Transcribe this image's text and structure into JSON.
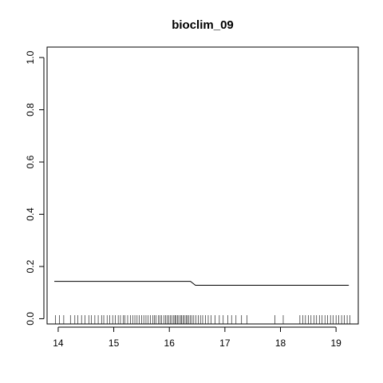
{
  "chart_data": {
    "type": "line",
    "title": "bioclim_09",
    "xlabel": "",
    "ylabel": "",
    "xlim": [
      13.8,
      19.4
    ],
    "ylim": [
      -0.02,
      1.04
    ],
    "x_ticks": [
      14,
      15,
      16,
      17,
      18,
      19
    ],
    "x_tick_labels": [
      "14",
      "15",
      "16",
      "17",
      "18",
      "19"
    ],
    "y_ticks": [
      0.0,
      0.2,
      0.4,
      0.6,
      0.8,
      1.0
    ],
    "y_tick_labels": [
      "0.0",
      "0.2",
      "0.4",
      "0.6",
      "0.8",
      "1.0"
    ],
    "grid": false,
    "series": [
      {
        "x": [
          13.93,
          16.38,
          16.47,
          19.23
        ],
        "y": [
          0.143,
          0.143,
          0.128,
          0.128
        ]
      }
    ],
    "rug": [
      13.95,
      14.02,
      14.1,
      14.22,
      14.3,
      14.35,
      14.42,
      14.48,
      14.55,
      14.6,
      14.66,
      14.72,
      14.78,
      14.82,
      14.88,
      14.93,
      14.98,
      15.03,
      15.08,
      15.12,
      15.17,
      15.2,
      15.25,
      15.3,
      15.34,
      15.38,
      15.42,
      15.46,
      15.5,
      15.54,
      15.58,
      15.62,
      15.66,
      15.7,
      15.73,
      15.76,
      15.8,
      15.83,
      15.86,
      15.9,
      15.93,
      15.96,
      15.99,
      16.02,
      16.05,
      16.08,
      16.1,
      16.12,
      16.15,
      16.17,
      16.2,
      16.22,
      16.25,
      16.27,
      16.3,
      16.32,
      16.35,
      16.38,
      16.41,
      16.44,
      16.48,
      16.52,
      16.56,
      16.6,
      16.65,
      16.7,
      16.75,
      16.82,
      16.9,
      16.97,
      17.05,
      17.12,
      17.2,
      17.3,
      17.4,
      17.9,
      18.05,
      18.35,
      18.4,
      18.45,
      18.5,
      18.55,
      18.6,
      18.65,
      18.7,
      18.75,
      18.8,
      18.85,
      18.9,
      18.95,
      19.0,
      19.05,
      19.1,
      19.15,
      19.2,
      19.25
    ]
  }
}
